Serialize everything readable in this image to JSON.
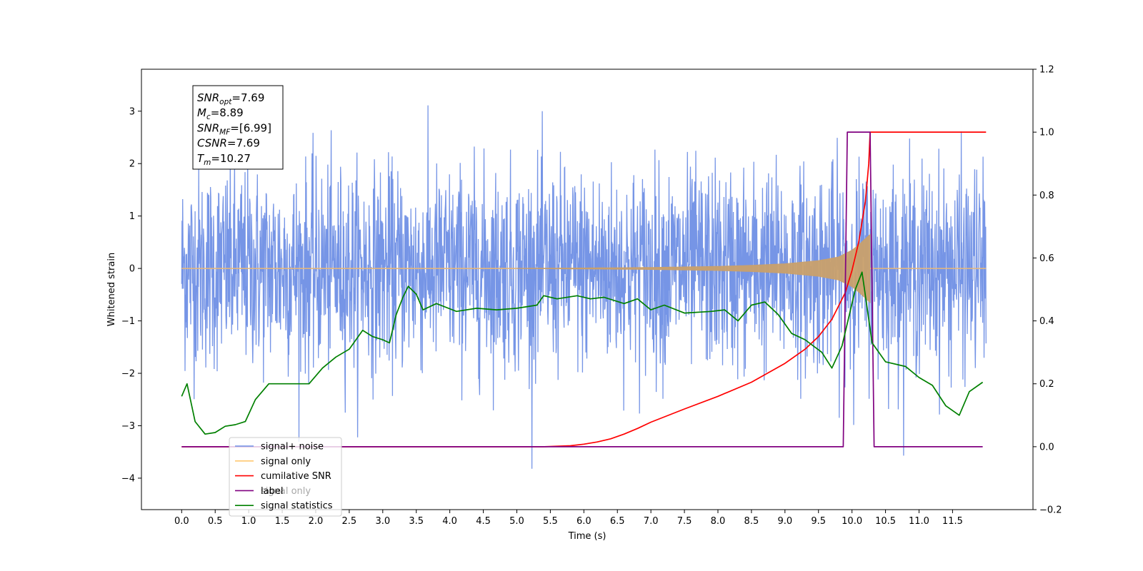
{
  "chart_data": {
    "type": "line",
    "xlabel": "Time (s)",
    "ylabel": "Whitened strain",
    "xlim": [
      -0.6,
      12.7
    ],
    "ylim": [
      -4.6,
      3.8
    ],
    "y2lim": [
      -0.2,
      1.2
    ],
    "grid": false,
    "legend_position": "lower-left",
    "x_ticks": [
      "0.0",
      "0.5",
      "1.0",
      "1.5",
      "2.0",
      "2.5",
      "3.0",
      "3.5",
      "4.0",
      "4.5",
      "5.0",
      "5.5",
      "6.0",
      "6.5",
      "7.0",
      "7.5",
      "8.0",
      "8.5",
      "9.0",
      "9.5",
      "10.0",
      "10.5",
      "11.0",
      "11.5"
    ],
    "y_ticks": [
      "3",
      "2",
      "1",
      "0",
      "−1",
      "−2",
      "−3",
      "−4"
    ],
    "y2_ticks": [
      "1.2",
      "1.0",
      "0.8",
      "0.6",
      "0.4",
      "0.2",
      "0.0",
      "−0.2"
    ],
    "colors": {
      "signal_noise": "#6f8fe5",
      "signal_only": "#c9a06b",
      "cumulative_snr": "#ff0000",
      "label": "#800080",
      "signal_statistics": "#008000"
    },
    "series": [
      {
        "name": "signal+ noise",
        "axis": "left",
        "x_range": [
          0.0,
          12.0
        ],
        "approx_band": [
          -2.0,
          2.1
        ],
        "approx_extremes": [
          -4.1,
          3.5
        ]
      },
      {
        "name": "signal only",
        "axis": "left",
        "x_range": [
          0.0,
          12.0
        ],
        "amplitude_envelope": {
          "x": [
            0.0,
            5.0,
            6.0,
            7.0,
            8.0,
            8.5,
            9.0,
            9.5,
            9.8,
            10.0,
            10.1,
            10.2,
            10.27
          ],
          "y": [
            0.0,
            0.004,
            0.01,
            0.02,
            0.04,
            0.06,
            0.09,
            0.15,
            0.22,
            0.35,
            0.45,
            0.57,
            0.65
          ]
        }
      },
      {
        "name": "cumilative SNR",
        "axis": "right",
        "x": [
          0.0,
          5.4,
          5.8,
          6.0,
          6.2,
          6.4,
          6.6,
          6.8,
          7.0,
          7.5,
          8.0,
          8.5,
          9.0,
          9.3,
          9.5,
          9.7,
          9.9,
          10.0,
          10.1,
          10.2,
          10.25,
          10.27,
          12.0
        ],
        "values": [
          0.0,
          0.0,
          0.003,
          0.008,
          0.015,
          0.025,
          0.04,
          0.058,
          0.078,
          0.12,
          0.16,
          0.205,
          0.265,
          0.31,
          0.35,
          0.405,
          0.49,
          0.56,
          0.65,
          0.78,
          0.9,
          1.0,
          1.0
        ]
      },
      {
        "name": "label",
        "axis": "right",
        "x": [
          0.0,
          9.87,
          9.93,
          10.27,
          10.33,
          11.95
        ],
        "values": [
          0.0,
          0.0,
          1.0,
          1.0,
          0.0,
          0.0
        ]
      },
      {
        "name": "signal only",
        "axis": "right",
        "hidden": true,
        "x": [],
        "values": []
      },
      {
        "name": "signal statistics",
        "axis": "right",
        "x": [
          0.0,
          0.08,
          0.2,
          0.35,
          0.5,
          0.65,
          0.8,
          0.95,
          1.1,
          1.3,
          1.6,
          1.9,
          2.1,
          2.3,
          2.5,
          2.7,
          2.85,
          3.0,
          3.1,
          3.2,
          3.3,
          3.38,
          3.5,
          3.6,
          3.8,
          4.1,
          4.4,
          4.7,
          5.0,
          5.3,
          5.4,
          5.6,
          5.9,
          6.1,
          6.3,
          6.6,
          6.8,
          7.0,
          7.2,
          7.5,
          7.9,
          8.1,
          8.3,
          8.5,
          8.7,
          8.9,
          9.1,
          9.3,
          9.55,
          9.7,
          9.85,
          10.05,
          10.15,
          10.3,
          10.5,
          10.8,
          11.0,
          11.2,
          11.4,
          11.6,
          11.75,
          11.95
        ],
        "values": [
          0.16,
          0.2,
          0.08,
          0.04,
          0.045,
          0.065,
          0.07,
          0.08,
          0.15,
          0.2,
          0.2,
          0.2,
          0.25,
          0.285,
          0.31,
          0.37,
          0.35,
          0.34,
          0.33,
          0.42,
          0.475,
          0.51,
          0.485,
          0.435,
          0.455,
          0.43,
          0.44,
          0.435,
          0.44,
          0.45,
          0.48,
          0.47,
          0.48,
          0.47,
          0.475,
          0.455,
          0.47,
          0.435,
          0.45,
          0.425,
          0.43,
          0.435,
          0.4,
          0.45,
          0.46,
          0.42,
          0.36,
          0.34,
          0.3,
          0.25,
          0.32,
          0.5,
          0.555,
          0.33,
          0.27,
          0.255,
          0.22,
          0.195,
          0.13,
          0.1,
          0.175,
          0.205
        ]
      }
    ],
    "annotation": {
      "lines": [
        {
          "base": "SNR",
          "sub": "opt",
          "rest": "=7.69"
        },
        {
          "base": "M",
          "sub": "c",
          "rest": "=8.89"
        },
        {
          "base": "SNR",
          "sub": "MF",
          "rest": "=[6.99]"
        },
        {
          "base": "CSNR",
          "sub": "",
          "rest": "=7.69"
        },
        {
          "base": "T",
          "sub": "m",
          "rest": "=10.27"
        }
      ]
    },
    "legend": [
      {
        "label": "signal+ noise",
        "color": "#6f8fe5"
      },
      {
        "label": "signal only",
        "color": "#ffc870"
      },
      {
        "label": "cumilative SNR",
        "color": "#ff0000"
      },
      {
        "label": "label",
        "color": "#800080"
      },
      {
        "label": "signal statistics",
        "color": "#008000"
      }
    ]
  }
}
